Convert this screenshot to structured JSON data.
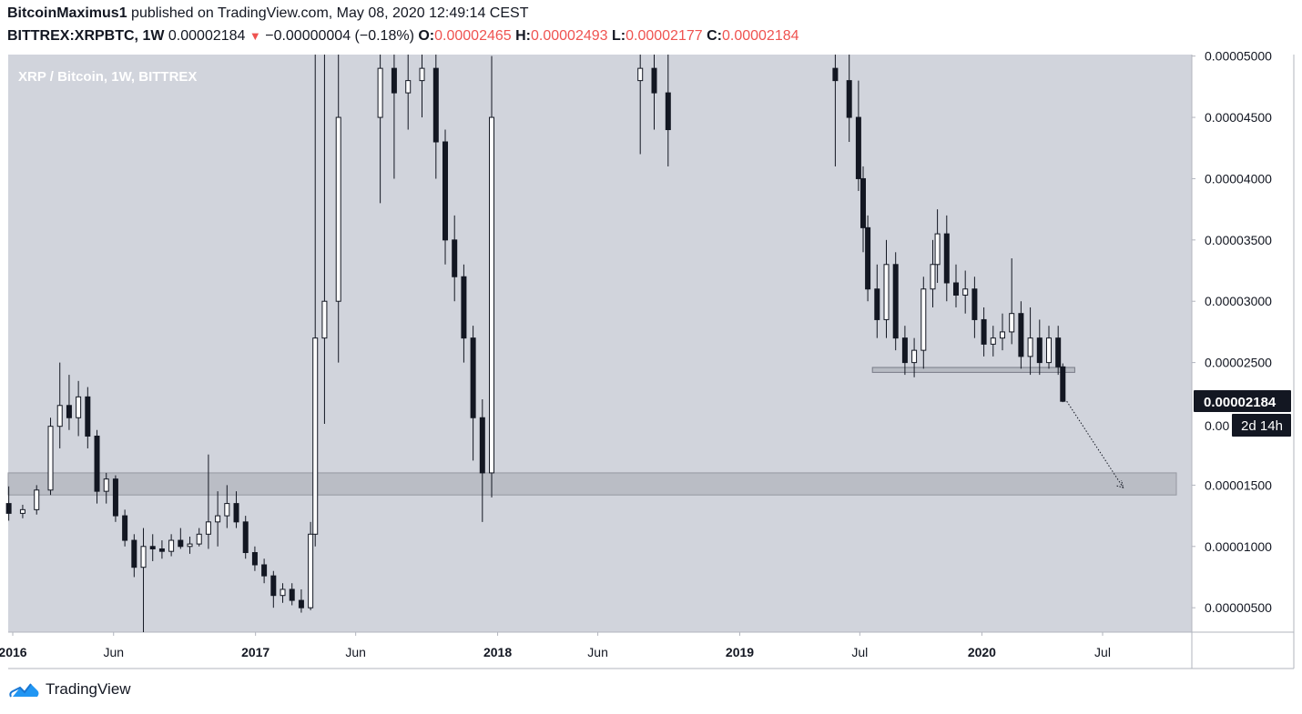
{
  "header": {
    "author": "BitcoinMaximus1",
    "published": "published on TradingView.com, May 08, 2020 12:49:14 CEST",
    "symbol": "BITTREX:XRPBTC, 1W",
    "last": "0.00002184",
    "change_arrow": "▼",
    "change": "−0.00000004 (−0.18%)",
    "o_label": "O:",
    "o_value": "0.00002465",
    "h_label": "H:",
    "h_value": "0.00002493",
    "l_label": "L:",
    "l_value": "0.00002177",
    "c_label": "C:",
    "c_value": "0.00002184"
  },
  "footer": {
    "brand": "TradingView",
    "logo_icon": "tradingview-cloud-icon"
  },
  "colors": {
    "plot_bg": "#d1d4dc",
    "candle": "#131722",
    "accent_red": "#ef5350",
    "zone_fill": "#b2b5be",
    "label_dark": "#131722"
  },
  "chart_data": {
    "type": "candlestick",
    "title": "XRP / Bitcoin, 1W, BITTREX",
    "y_ticks": [
      "0.00005000",
      "0.00004500",
      "0.00004000",
      "0.00003500",
      "0.00003000",
      "0.00002500",
      "0.00001500",
      "0.00001000",
      "0.00000500"
    ],
    "y_tick_values": [
      5000,
      4500,
      4000,
      3500,
      3000,
      2500,
      1500,
      1000,
      500
    ],
    "y_unit_scale": "1e-8",
    "ylim": [
      200,
      5050
    ],
    "hidden_tick_fragment": "0.00",
    "x_ticks": [
      {
        "label": "2016",
        "bold": true,
        "date": "2016-01-01"
      },
      {
        "label": "Jun",
        "bold": false,
        "date": "2016-06-01"
      },
      {
        "label": "2017",
        "bold": true,
        "date": "2017-01-01"
      },
      {
        "label": "Jun",
        "bold": false,
        "date": "2017-06-01"
      },
      {
        "label": "2018",
        "bold": true,
        "date": "2018-01-01"
      },
      {
        "label": "Jun",
        "bold": false,
        "date": "2018-06-01"
      },
      {
        "label": "2019",
        "bold": true,
        "date": "2019-01-01"
      },
      {
        "label": "Jul",
        "bold": false,
        "date": "2019-07-01"
      },
      {
        "label": "2020",
        "bold": true,
        "date": "2020-01-01"
      },
      {
        "label": "Jul",
        "bold": false,
        "date": "2020-07-01"
      }
    ],
    "last_price_label": "0.00002184",
    "countdown_label": "2d 14h",
    "support_zone": {
      "low": 1420,
      "high": 1600,
      "from": "2015-12-01",
      "to": "2020-09-01"
    },
    "small_zone": {
      "low": 2420,
      "high": 2460,
      "from": "2019-07-20",
      "to": "2020-05-20"
    },
    "projection": {
      "from": {
        "date": "2020-05-08",
        "value": 2184
      },
      "to": {
        "date": "2020-08-01",
        "value": 1480
      }
    },
    "candles": [
      [
        "2015-12-26",
        1350,
        1490,
        1210,
        1270
      ],
      [
        "2016-01-16",
        1270,
        1340,
        1230,
        1300
      ],
      [
        "2016-02-06",
        1300,
        1500,
        1260,
        1460
      ],
      [
        "2016-02-27",
        1460,
        2050,
        1420,
        1980
      ],
      [
        "2016-03-12",
        1980,
        2500,
        1800,
        2150
      ],
      [
        "2016-03-26",
        2150,
        2400,
        1950,
        2050
      ],
      [
        "2016-04-09",
        2050,
        2350,
        1900,
        2220
      ],
      [
        "2016-04-23",
        2220,
        2300,
        1800,
        1900
      ],
      [
        "2016-05-07",
        1900,
        1950,
        1350,
        1450
      ],
      [
        "2016-05-21",
        1450,
        1600,
        1350,
        1550
      ],
      [
        "2016-06-04",
        1550,
        1580,
        1200,
        1250
      ],
      [
        "2016-06-18",
        1250,
        1300,
        1000,
        1050
      ],
      [
        "2016-07-02",
        1050,
        1100,
        750,
        830
      ],
      [
        "2016-07-16",
        830,
        1150,
        240,
        1000
      ],
      [
        "2016-07-30",
        1000,
        1100,
        880,
        980
      ],
      [
        "2016-08-13",
        980,
        1050,
        900,
        960
      ],
      [
        "2016-08-27",
        960,
        1100,
        920,
        1050
      ],
      [
        "2016-09-10",
        1050,
        1150,
        980,
        1000
      ],
      [
        "2016-09-24",
        1000,
        1080,
        940,
        1020
      ],
      [
        "2016-10-08",
        1020,
        1150,
        1000,
        1100
      ],
      [
        "2016-10-22",
        1100,
        1750,
        980,
        1200
      ],
      [
        "2016-11-05",
        1200,
        1450,
        1000,
        1250
      ],
      [
        "2016-11-19",
        1250,
        1500,
        1150,
        1350
      ],
      [
        "2016-12-03",
        1350,
        1450,
        1150,
        1200
      ],
      [
        "2016-12-17",
        1200,
        1250,
        900,
        950
      ],
      [
        "2016-12-31",
        950,
        1000,
        800,
        850
      ],
      [
        "2017-01-14",
        850,
        900,
        700,
        760
      ],
      [
        "2017-01-28",
        760,
        800,
        500,
        600
      ],
      [
        "2017-02-11",
        600,
        700,
        540,
        650
      ],
      [
        "2017-02-25",
        650,
        700,
        520,
        560
      ],
      [
        "2017-03-11",
        560,
        650,
        460,
        500
      ],
      [
        "2017-03-25",
        500,
        1200,
        480,
        1100
      ],
      [
        "2017-04-01",
        1100,
        5200,
        1000,
        2700
      ],
      [
        "2017-04-15",
        2700,
        5500,
        2000,
        3000
      ],
      [
        "2017-05-06",
        3000,
        5500,
        2500,
        4500
      ],
      [
        "2017-07-08",
        4500,
        5300,
        3800,
        4900
      ],
      [
        "2017-07-29",
        4900,
        5200,
        4000,
        4700
      ],
      [
        "2017-08-19",
        4700,
        5200,
        4400,
        4800
      ],
      [
        "2017-09-09",
        4800,
        5200,
        4500,
        4900
      ],
      [
        "2017-09-30",
        4900,
        5100,
        4000,
        4300
      ],
      [
        "2017-10-14",
        4300,
        4400,
        3300,
        3500
      ],
      [
        "2017-10-28",
        3500,
        3700,
        3000,
        3200
      ],
      [
        "2017-11-11",
        3200,
        3300,
        2500,
        2700
      ],
      [
        "2017-11-25",
        2700,
        2800,
        1700,
        2050
      ],
      [
        "2017-12-09",
        2050,
        2200,
        1200,
        1600
      ],
      [
        "2017-12-23",
        1600,
        5000,
        1400,
        4500
      ],
      [
        "2018-08-04",
        4800,
        5200,
        4200,
        4900
      ],
      [
        "2018-08-25",
        4900,
        5200,
        4400,
        4700
      ],
      [
        "2018-09-15",
        4700,
        5100,
        4100,
        4400
      ],
      [
        "2019-05-25",
        4900,
        5300,
        4100,
        4800
      ],
      [
        "2019-06-15",
        4800,
        5100,
        4300,
        4500
      ],
      [
        "2019-06-29",
        4500,
        4800,
        3900,
        4000
      ],
      [
        "2019-07-06",
        4000,
        4100,
        3400,
        3600
      ],
      [
        "2019-07-13",
        3600,
        3700,
        3000,
        3100
      ],
      [
        "2019-07-27",
        3100,
        3300,
        2700,
        2850
      ],
      [
        "2019-08-10",
        2850,
        3500,
        2700,
        3300
      ],
      [
        "2019-08-24",
        3300,
        3400,
        2600,
        2700
      ],
      [
        "2019-09-07",
        2700,
        2800,
        2400,
        2500
      ],
      [
        "2019-09-21",
        2500,
        2700,
        2380,
        2600
      ],
      [
        "2019-10-05",
        2600,
        3200,
        2450,
        3100
      ],
      [
        "2019-10-19",
        3100,
        3500,
        2950,
        3300
      ],
      [
        "2019-10-26",
        3300,
        3750,
        3150,
        3550
      ],
      [
        "2019-11-09",
        3550,
        3700,
        3000,
        3150
      ],
      [
        "2019-11-23",
        3150,
        3300,
        2950,
        3050
      ],
      [
        "2019-12-07",
        3050,
        3250,
        2900,
        3100
      ],
      [
        "2019-12-21",
        3100,
        3200,
        2700,
        2850
      ],
      [
        "2020-01-04",
        2850,
        2950,
        2550,
        2650
      ],
      [
        "2020-01-18",
        2650,
        2800,
        2550,
        2700
      ],
      [
        "2020-02-01",
        2700,
        2900,
        2600,
        2750
      ],
      [
        "2020-02-15",
        2750,
        3350,
        2650,
        2900
      ],
      [
        "2020-02-29",
        2900,
        3000,
        2450,
        2550
      ],
      [
        "2020-03-14",
        2550,
        2950,
        2400,
        2700
      ],
      [
        "2020-03-28",
        2700,
        2850,
        2400,
        2500
      ],
      [
        "2020-04-11",
        2500,
        2800,
        2450,
        2700
      ],
      [
        "2020-04-25",
        2700,
        2800,
        2400,
        2465
      ],
      [
        "2020-05-02",
        2465,
        2493,
        2177,
        2184
      ]
    ]
  }
}
